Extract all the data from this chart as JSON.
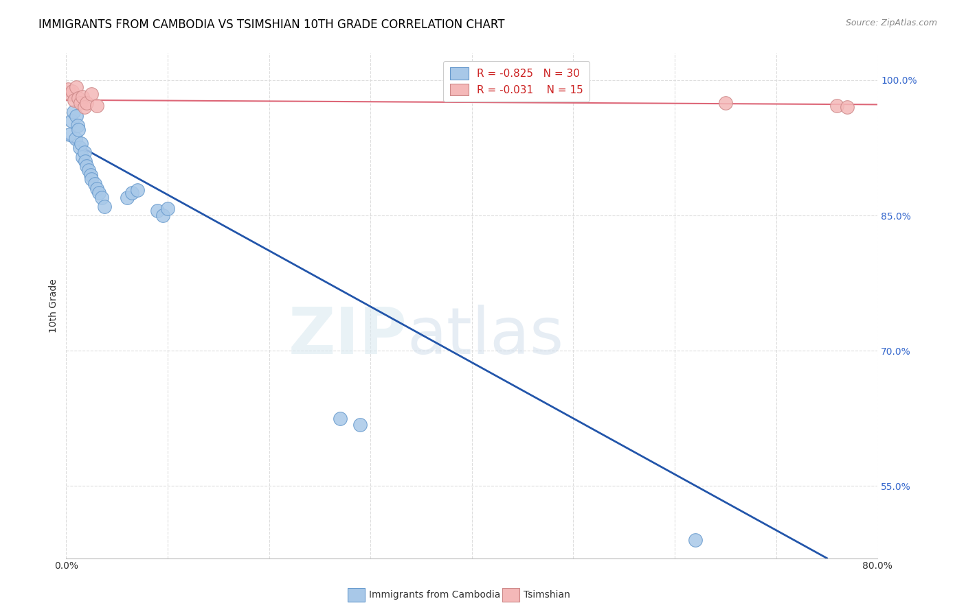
{
  "title": "IMMIGRANTS FROM CAMBODIA VS TSIMSHIAN 10TH GRADE CORRELATION CHART",
  "source": "Source: ZipAtlas.com",
  "ylabel": "10th Grade",
  "xlim": [
    0.0,
    0.8
  ],
  "ylim": [
    0.47,
    1.03
  ],
  "xticks": [
    0.0,
    0.1,
    0.2,
    0.3,
    0.4,
    0.5,
    0.6,
    0.7,
    0.8
  ],
  "yticks_right": [
    0.55,
    0.7,
    0.85,
    1.0
  ],
  "ytick_labels_right": [
    "55.0%",
    "70.0%",
    "85.0%",
    "100.0%"
  ],
  "legend_blue_label": "Immigrants from Cambodia",
  "legend_pink_label": "Tsimshian",
  "R_blue": "-0.825",
  "N_blue": 30,
  "R_pink": "-0.031",
  "N_pink": 15,
  "blue_scatter_x": [
    0.003,
    0.005,
    0.007,
    0.009,
    0.01,
    0.011,
    0.012,
    0.013,
    0.015,
    0.016,
    0.018,
    0.019,
    0.02,
    0.022,
    0.024,
    0.025,
    0.028,
    0.03,
    0.032,
    0.035,
    0.038,
    0.06,
    0.065,
    0.07,
    0.09,
    0.095,
    0.1,
    0.27,
    0.29,
    0.62
  ],
  "blue_scatter_y": [
    0.94,
    0.955,
    0.965,
    0.935,
    0.96,
    0.95,
    0.945,
    0.925,
    0.93,
    0.915,
    0.92,
    0.91,
    0.905,
    0.9,
    0.895,
    0.89,
    0.885,
    0.88,
    0.875,
    0.87,
    0.86,
    0.87,
    0.875,
    0.878,
    0.855,
    0.85,
    0.858,
    0.625,
    0.618,
    0.49
  ],
  "pink_scatter_x": [
    0.002,
    0.004,
    0.006,
    0.008,
    0.01,
    0.012,
    0.014,
    0.016,
    0.018,
    0.02,
    0.025,
    0.03,
    0.65,
    0.76,
    0.77
  ],
  "pink_scatter_y": [
    0.99,
    0.985,
    0.988,
    0.978,
    0.992,
    0.98,
    0.975,
    0.982,
    0.97,
    0.975,
    0.985,
    0.972,
    0.975,
    0.972,
    0.97
  ],
  "blue_line_x": [
    0.0,
    0.75
  ],
  "blue_line_y": [
    0.935,
    0.47
  ],
  "pink_line_x": [
    0.0,
    0.8
  ],
  "pink_line_y": [
    0.978,
    0.973
  ],
  "watermark_zip": "ZIP",
  "watermark_atlas": "atlas",
  "blue_color": "#a8c8e8",
  "blue_edge_color": "#6699cc",
  "blue_line_color": "#2255aa",
  "pink_color": "#f4b8b8",
  "pink_edge_color": "#cc8888",
  "pink_line_color": "#dd6677",
  "grid_color": "#dddddd",
  "title_fontsize": 12,
  "axis_label_fontsize": 10,
  "tick_fontsize": 10,
  "right_tick_color": "#3366cc",
  "legend_r_color": "#cc2222",
  "legend_n_color": "#222222"
}
